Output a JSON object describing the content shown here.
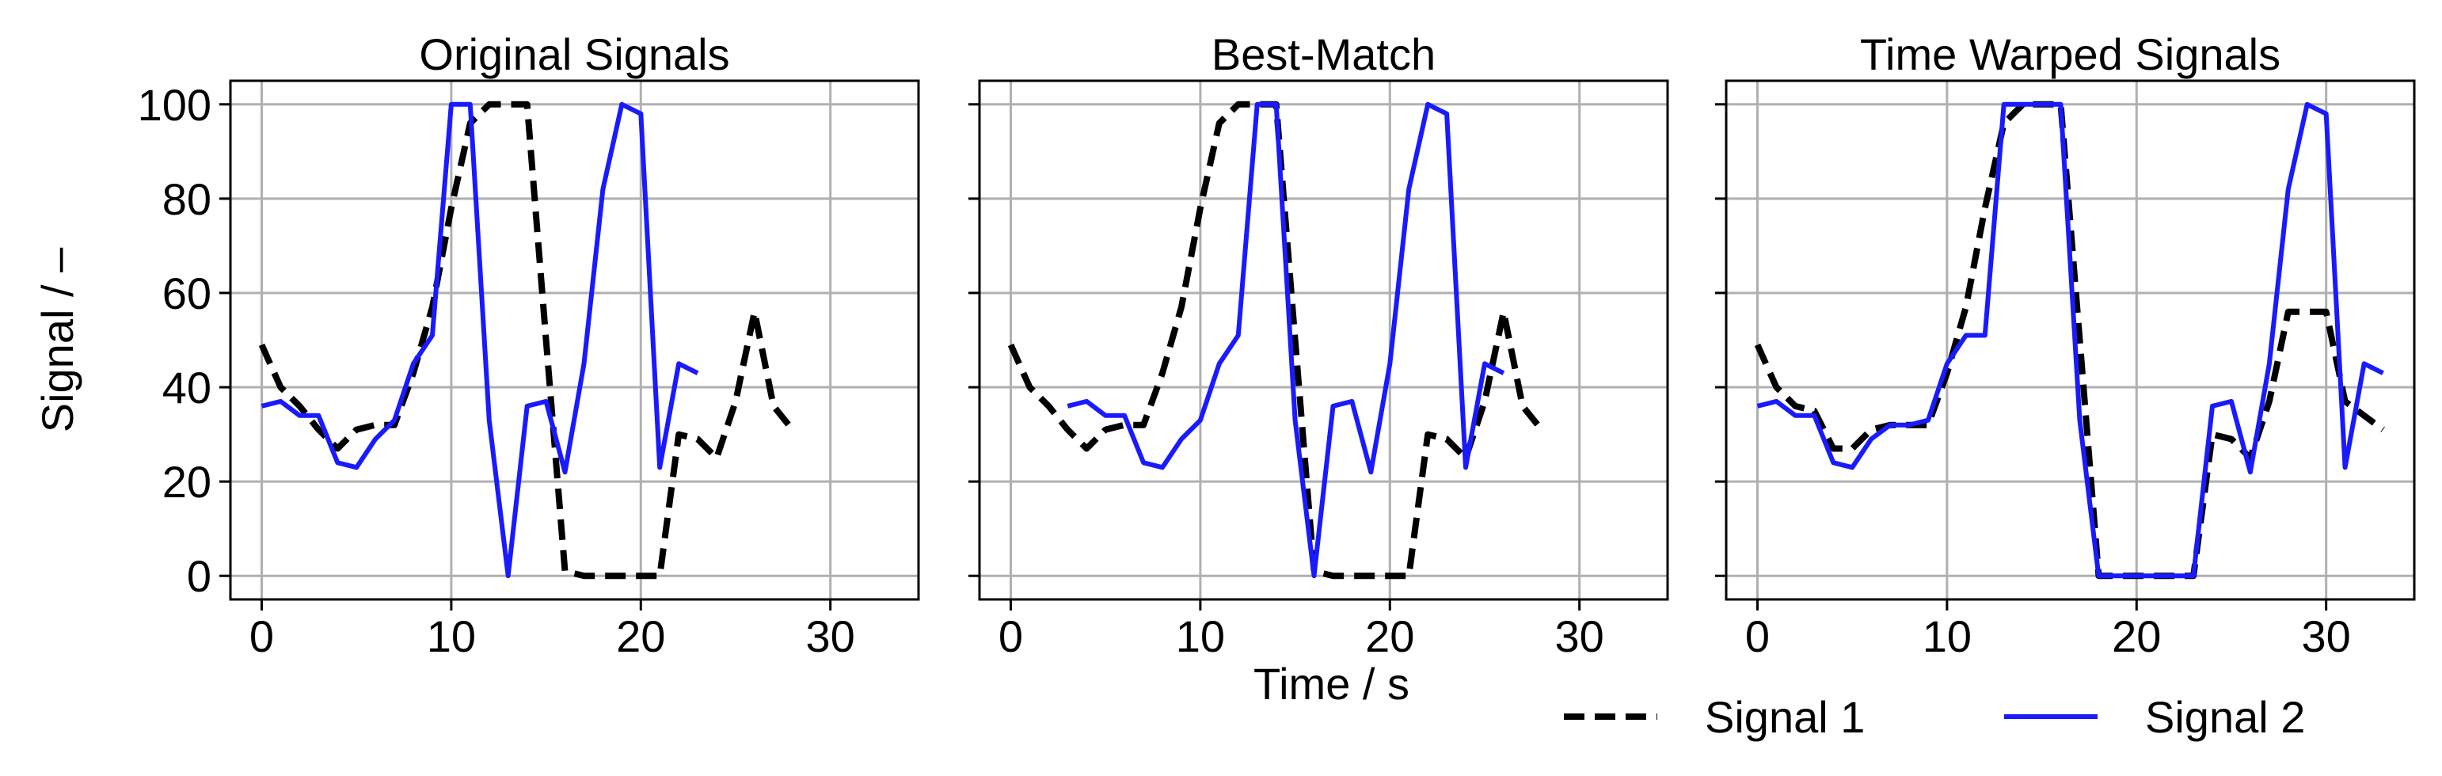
{
  "chart_data": [
    {
      "type": "line",
      "title": "Original Signals",
      "ylabel": "Signal / –",
      "xlim": [
        -1.65,
        34.65
      ],
      "ylim": [
        -5,
        105
      ],
      "xticks": [
        0,
        10,
        20,
        30
      ],
      "yticks": [
        0,
        20,
        40,
        60,
        80,
        100
      ],
      "grid": true,
      "series": [
        {
          "name": "Signal 1",
          "color": "#000000",
          "linestyle": "dashed",
          "x": [
            0,
            1,
            2,
            3,
            4,
            5,
            6,
            7,
            8,
            9,
            10,
            11,
            12,
            13,
            14,
            15,
            16,
            17,
            18,
            19,
            20,
            21,
            22,
            23,
            24,
            25,
            26,
            27,
            28
          ],
          "values": [
            49,
            40,
            36,
            31,
            27,
            31,
            32,
            32,
            43,
            57,
            78,
            96,
            100,
            100,
            100,
            50,
            1,
            0,
            0,
            0,
            0,
            0,
            30,
            29,
            25,
            37,
            56,
            36,
            31
          ]
        },
        {
          "name": "Signal 2",
          "color": "#1a1aff",
          "linestyle": "solid",
          "x": [
            0,
            1,
            2,
            3,
            4,
            5,
            6,
            7,
            8,
            9,
            10,
            11,
            12,
            13,
            14,
            15,
            16,
            17,
            18,
            19,
            20,
            21,
            22,
            23
          ],
          "values": [
            36,
            37,
            34,
            34,
            24,
            23,
            29,
            33,
            45,
            51,
            100,
            100,
            33,
            0,
            36,
            37,
            22,
            45,
            82,
            100,
            98,
            23,
            45,
            43
          ]
        }
      ]
    },
    {
      "type": "line",
      "title": "Best-Match",
      "xlabel": "Time / s",
      "xlim": [
        -1.65,
        34.65
      ],
      "ylim": [
        -5,
        105
      ],
      "xticks": [
        0,
        10,
        20,
        30
      ],
      "yticks": [
        0,
        20,
        40,
        60,
        80,
        100
      ],
      "grid": true,
      "series": [
        {
          "name": "Signal 1",
          "color": "#000000",
          "linestyle": "dashed",
          "x": [
            0,
            1,
            2,
            3,
            4,
            5,
            6,
            7,
            8,
            9,
            10,
            11,
            12,
            13,
            14,
            15,
            16,
            17,
            18,
            19,
            20,
            21,
            22,
            23,
            24,
            25,
            26,
            27,
            28
          ],
          "values": [
            49,
            40,
            36,
            31,
            27,
            31,
            32,
            32,
            43,
            57,
            78,
            96,
            100,
            100,
            100,
            50,
            1,
            0,
            0,
            0,
            0,
            0,
            30,
            29,
            25,
            37,
            56,
            36,
            31
          ]
        },
        {
          "name": "Signal 2",
          "color": "#1a1aff",
          "linestyle": "solid",
          "x": [
            3,
            4,
            5,
            6,
            7,
            8,
            9,
            10,
            11,
            12,
            13,
            14,
            15,
            16,
            17,
            18,
            19,
            20,
            21,
            22,
            23,
            24,
            25,
            26
          ],
          "values": [
            36,
            37,
            34,
            34,
            24,
            23,
            29,
            33,
            45,
            51,
            100,
            100,
            33,
            0,
            36,
            37,
            22,
            45,
            82,
            100,
            98,
            23,
            45,
            43
          ]
        }
      ]
    },
    {
      "type": "line",
      "title": "Time Warped Signals",
      "legend": "below",
      "xlim": [
        -1.65,
        34.65
      ],
      "ylim": [
        -5,
        105
      ],
      "xticks": [
        0,
        10,
        20,
        30
      ],
      "yticks": [
        0,
        20,
        40,
        60,
        80,
        100
      ],
      "grid": true,
      "series": [
        {
          "name": "Signal 1",
          "color": "#000000",
          "linestyle": "dashed",
          "x": [
            0,
            1,
            2,
            3,
            4,
            5,
            6,
            7,
            8,
            9,
            10,
            11,
            12,
            13,
            14,
            15,
            16,
            17,
            18,
            19,
            20,
            21,
            22,
            23,
            24,
            25,
            26,
            27,
            28,
            29,
            30,
            31,
            32,
            33
          ],
          "values": [
            49,
            40,
            36,
            35,
            27,
            27,
            31,
            32,
            32,
            32,
            43,
            57,
            78,
            96,
            100,
            100,
            100,
            50,
            0,
            0,
            0,
            0,
            0,
            0,
            30,
            29,
            25,
            37,
            56,
            56,
            56,
            37,
            34,
            31
          ]
        },
        {
          "name": "Signal 2",
          "color": "#1a1aff",
          "linestyle": "solid",
          "x": [
            0,
            1,
            2,
            3,
            4,
            5,
            6,
            7,
            8,
            9,
            10,
            11,
            12,
            13,
            14,
            15,
            16,
            17,
            18,
            19,
            20,
            21,
            22,
            23,
            24,
            25,
            26,
            27,
            28,
            29,
            30,
            31,
            32,
            33
          ],
          "values": [
            36,
            37,
            34,
            34,
            24,
            23,
            29,
            32,
            32,
            33,
            45,
            51,
            51,
            100,
            100,
            100,
            100,
            33,
            0,
            0,
            0,
            0,
            0,
            0,
            36,
            37,
            22,
            45,
            82,
            100,
            98,
            23,
            45,
            43
          ]
        }
      ]
    }
  ]
}
